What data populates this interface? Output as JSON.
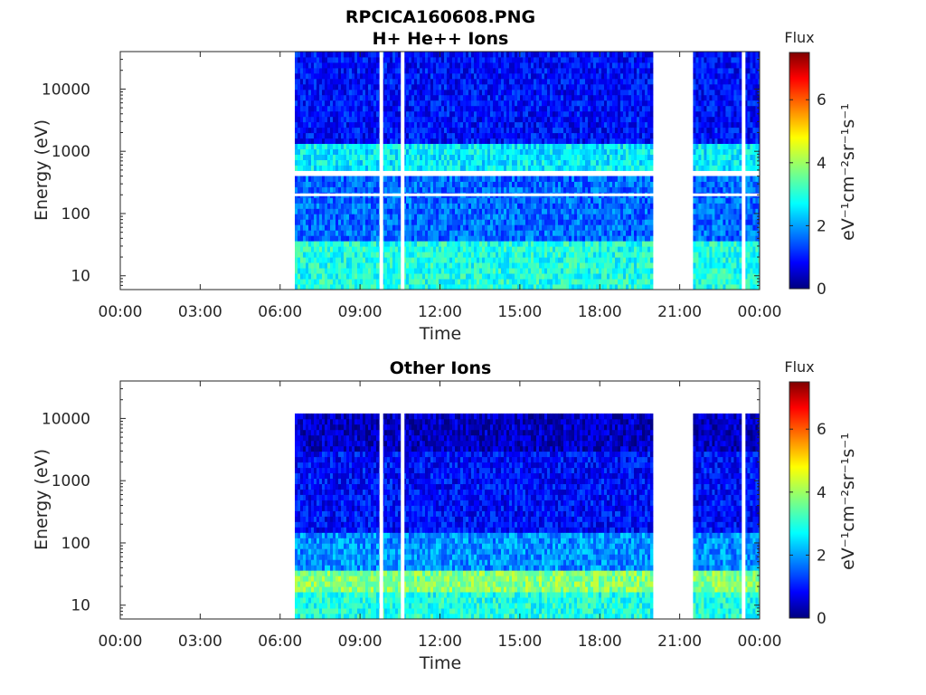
{
  "figure_title": "RPCICA160608.PNG",
  "chart_data": [
    {
      "type": "heatmap",
      "title": "H+ He++ Ions",
      "xlabel": "Time",
      "ylabel": "Energy (eV)",
      "x_ticks": [
        "00:00",
        "03:00",
        "06:00",
        "09:00",
        "12:00",
        "15:00",
        "18:00",
        "21:00",
        "00:00"
      ],
      "x_range_hours": [
        0,
        24
      ],
      "y_scale": "log",
      "y_ticks": [
        "10",
        "100",
        "1000",
        "10000"
      ],
      "y_range": [
        6,
        40000
      ],
      "colorbar": {
        "title": "Flux",
        "label": "eV⁻¹cm⁻²sr⁻¹s⁻¹",
        "ticks": [
          "0",
          "2",
          "4",
          "6"
        ],
        "range": [
          0,
          7.5
        ]
      },
      "data_segments_hours": [
        [
          6.55,
          19.9
        ],
        [
          21.5,
          24
        ]
      ],
      "gap_lines_hours": [
        9.8,
        10.6,
        23.4
      ],
      "gap_energy_eV": 200,
      "features": [
        {
          "energy_eV": [
            6,
            40
          ],
          "level": 3.0
        },
        {
          "energy_eV": [
            40,
            400
          ],
          "level": 1.7
        },
        {
          "energy_eV": [
            500,
            1300
          ],
          "level": 2.7
        },
        {
          "energy_eV": [
            1300,
            40000
          ],
          "level": 1.0
        }
      ]
    },
    {
      "type": "heatmap",
      "title": "Other Ions",
      "xlabel": "Time",
      "ylabel": "Energy (eV)",
      "x_ticks": [
        "00:00",
        "03:00",
        "06:00",
        "09:00",
        "12:00",
        "15:00",
        "18:00",
        "21:00",
        "00:00"
      ],
      "x_range_hours": [
        0,
        24
      ],
      "y_scale": "log",
      "y_ticks": [
        "10",
        "100",
        "1000",
        "10000"
      ],
      "y_range": [
        6,
        40000
      ],
      "colorbar": {
        "title": "Flux",
        "label": "eV⁻¹cm⁻²sr⁻¹s⁻¹",
        "ticks": [
          "0",
          "2",
          "4",
          "6"
        ],
        "range": [
          0,
          7.5
        ]
      },
      "data_segments_hours": [
        [
          6.55,
          19.9
        ],
        [
          21.5,
          24
        ]
      ],
      "gap_lines_hours": [
        9.8,
        10.6,
        23.4
      ],
      "energy_cap_eV": 11000,
      "features": [
        {
          "energy_eV": [
            15,
            35
          ],
          "level": 3.8
        },
        {
          "energy_eV": [
            6,
            15
          ],
          "level": 3.0
        },
        {
          "energy_eV": [
            35,
            150
          ],
          "level": 2.0
        },
        {
          "energy_eV": [
            150,
            3000
          ],
          "level": 1.0
        },
        {
          "energy_eV": [
            3000,
            11000
          ],
          "level": 0.5
        }
      ]
    }
  ]
}
